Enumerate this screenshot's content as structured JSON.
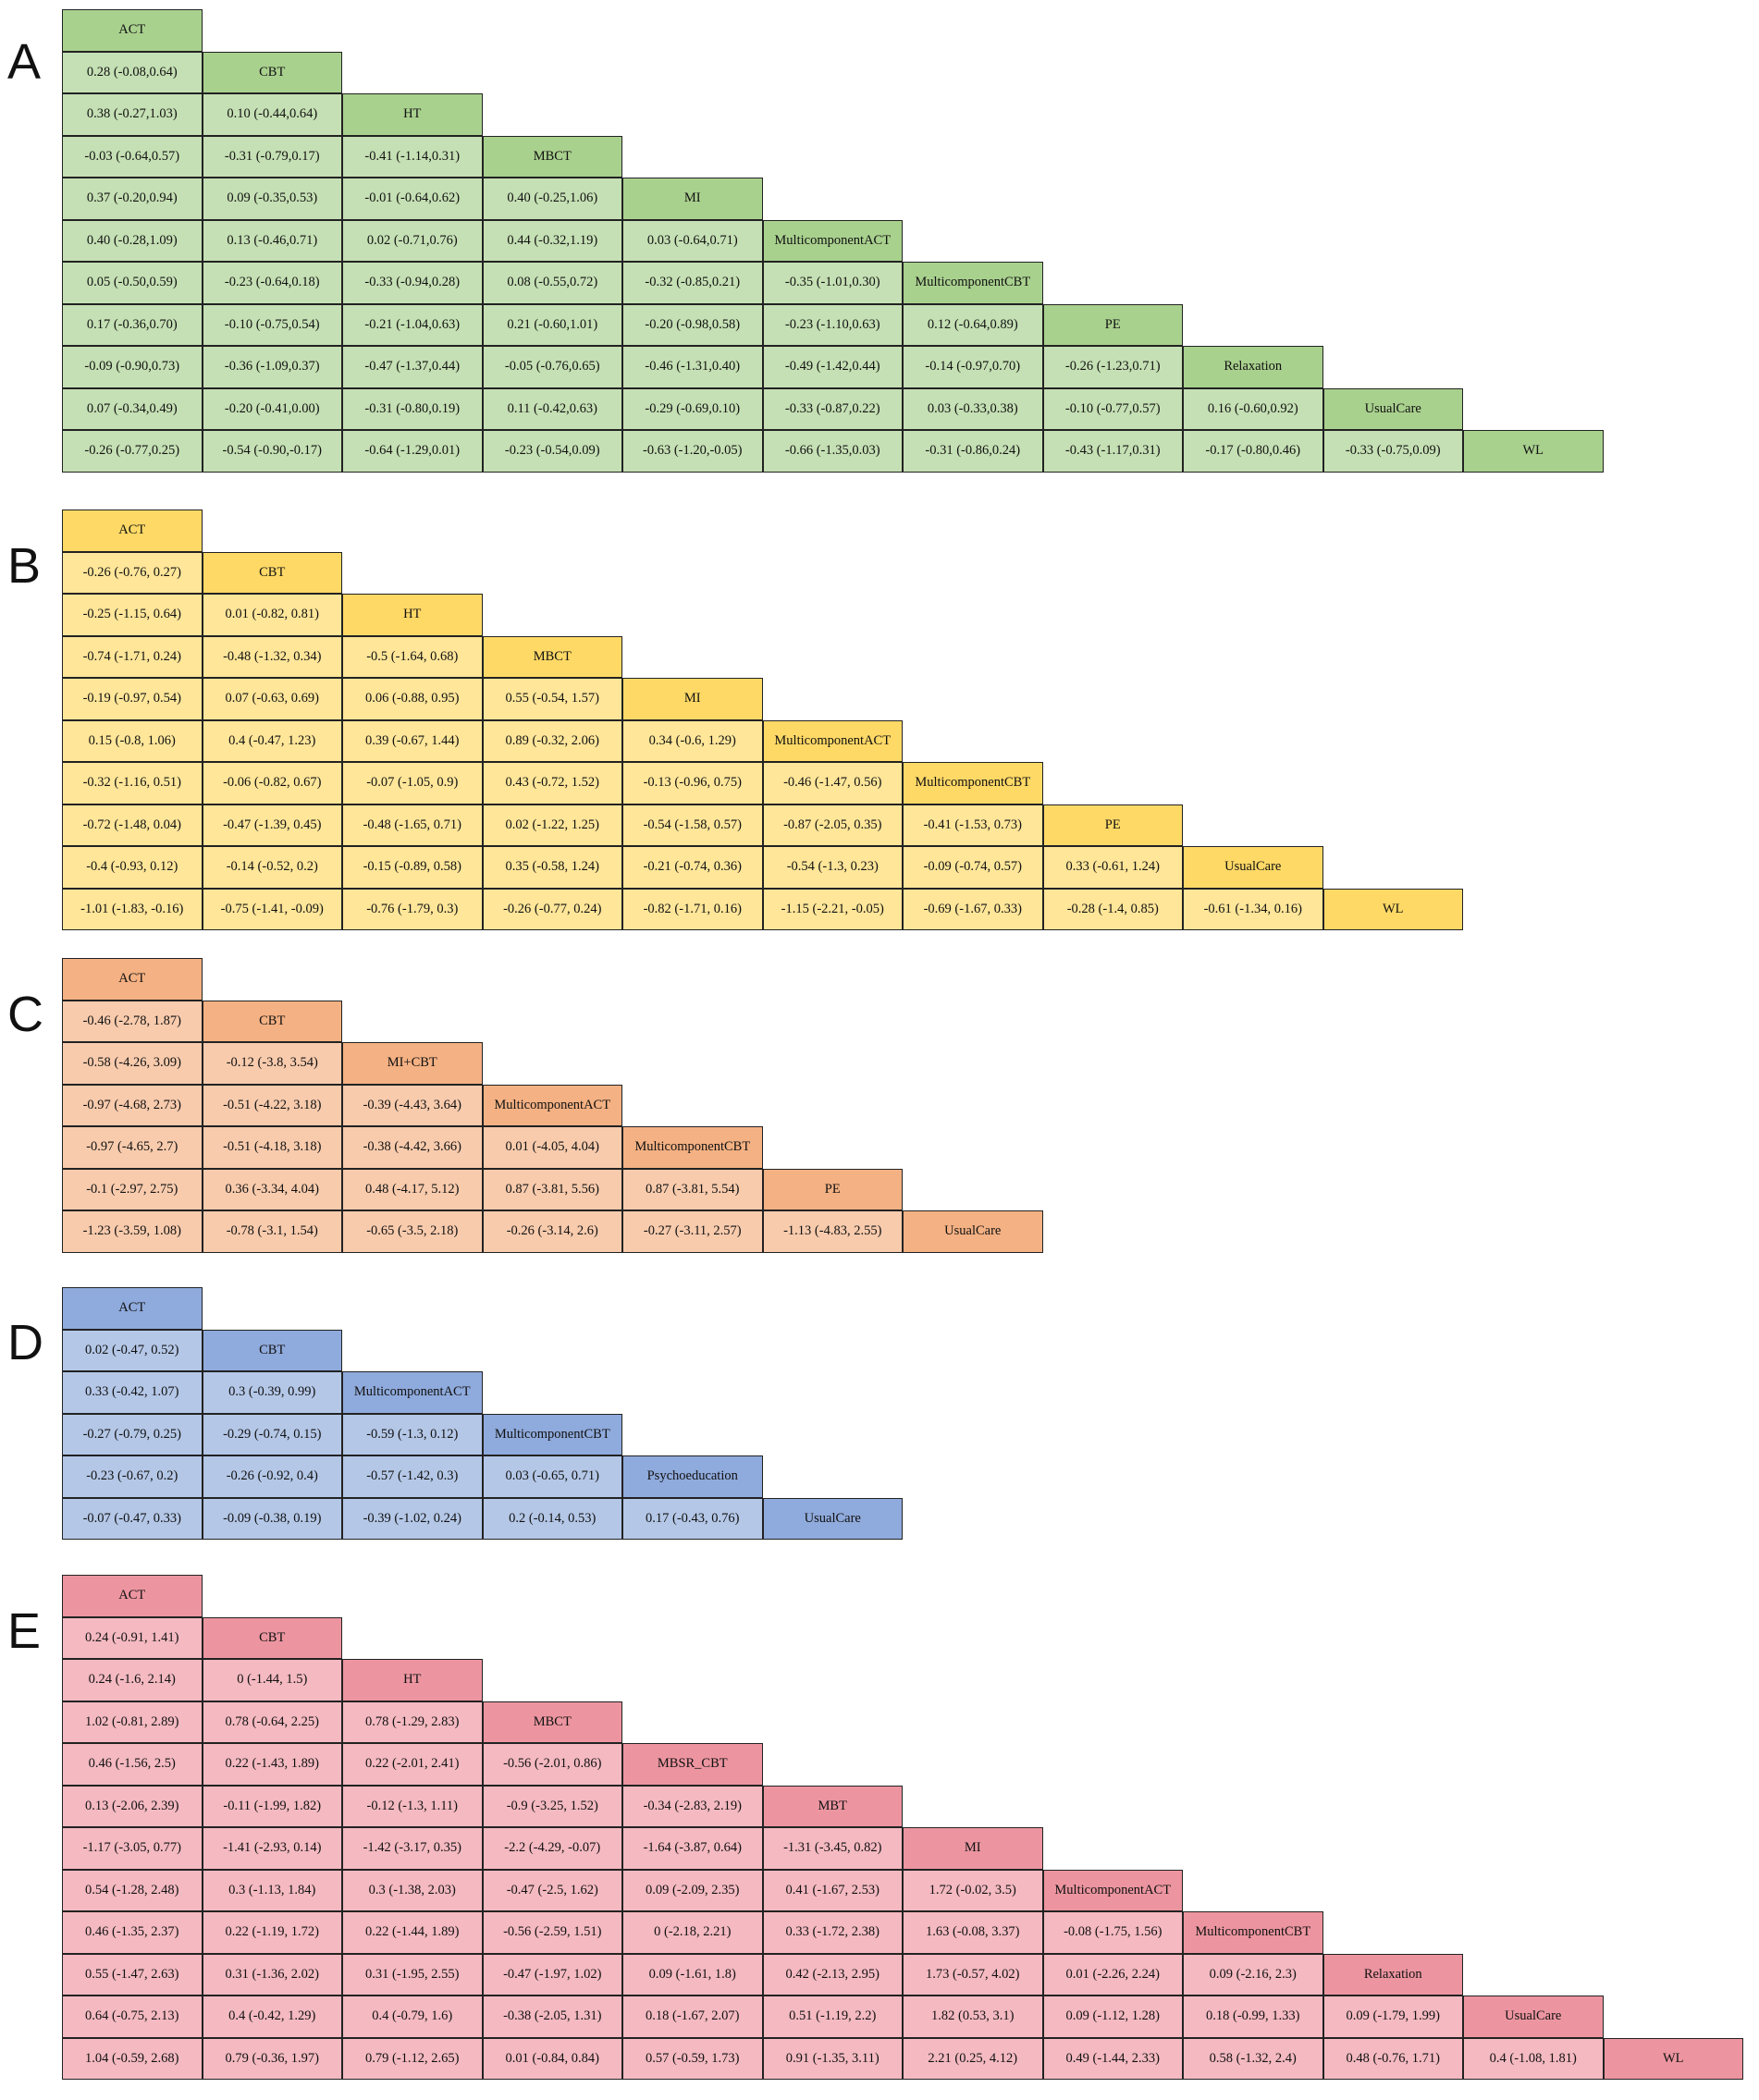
{
  "chart_data": [
    {
      "type": "table",
      "panel": "A",
      "colors": {
        "header": "#a9d18e",
        "cell": "#c5e0b4"
      },
      "treatments": [
        "ACT",
        "CBT",
        "HT",
        "MBCT",
        "MI",
        "MulticomponentACT",
        "MulticomponentCBT",
        "PE",
        "Relaxation",
        "UsualCare",
        "WL"
      ],
      "rows": [
        [],
        [
          "0.28 (-0.08,0.64)"
        ],
        [
          "0.38 (-0.27,1.03)",
          "0.10 (-0.44,0.64)"
        ],
        [
          "-0.03 (-0.64,0.57)",
          "-0.31 (-0.79,0.17)",
          "-0.41 (-1.14,0.31)"
        ],
        [
          "0.37 (-0.20,0.94)",
          "0.09 (-0.35,0.53)",
          "-0.01 (-0.64,0.62)",
          "0.40 (-0.25,1.06)"
        ],
        [
          "0.40 (-0.28,1.09)",
          "0.13 (-0.46,0.71)",
          "0.02 (-0.71,0.76)",
          "0.44 (-0.32,1.19)",
          "0.03 (-0.64,0.71)"
        ],
        [
          "0.05 (-0.50,0.59)",
          "-0.23 (-0.64,0.18)",
          "-0.33 (-0.94,0.28)",
          "0.08 (-0.55,0.72)",
          "-0.32 (-0.85,0.21)",
          "-0.35 (-1.01,0.30)"
        ],
        [
          "0.17 (-0.36,0.70)",
          "-0.10 (-0.75,0.54)",
          "-0.21 (-1.04,0.63)",
          "0.21 (-0.60,1.01)",
          "-0.20 (-0.98,0.58)",
          "-0.23 (-1.10,0.63)",
          "0.12 (-0.64,0.89)"
        ],
        [
          "-0.09 (-0.90,0.73)",
          "-0.36 (-1.09,0.37)",
          "-0.47 (-1.37,0.44)",
          "-0.05 (-0.76,0.65)",
          "-0.46 (-1.31,0.40)",
          "-0.49 (-1.42,0.44)",
          "-0.14 (-0.97,0.70)",
          "-0.26 (-1.23,0.71)"
        ],
        [
          "0.07 (-0.34,0.49)",
          "-0.20 (-0.41,0.00)",
          "-0.31 (-0.80,0.19)",
          "0.11 (-0.42,0.63)",
          "-0.29 (-0.69,0.10)",
          "-0.33 (-0.87,0.22)",
          "0.03 (-0.33,0.38)",
          "-0.10 (-0.77,0.57)",
          "0.16 (-0.60,0.92)"
        ],
        [
          "-0.26 (-0.77,0.25)",
          "-0.54 (-0.90,-0.17)",
          "-0.64 (-1.29,0.01)",
          "-0.23 (-0.54,0.09)",
          "-0.63 (-1.20,-0.05)",
          "-0.66 (-1.35,0.03)",
          "-0.31 (-0.86,0.24)",
          "-0.43 (-1.17,0.31)",
          "-0.17 (-0.80,0.46)",
          "-0.33 (-0.75,0.09)"
        ]
      ]
    },
    {
      "type": "table",
      "panel": "B",
      "colors": {
        "header": "#ffd966",
        "cell": "#ffe699"
      },
      "treatments": [
        "ACT",
        "CBT",
        "HT",
        "MBCT",
        "MI",
        "MulticomponentACT",
        "MulticomponentCBT",
        "PE",
        "UsualCare",
        "WL"
      ],
      "rows": [
        [],
        [
          "-0.26 (-0.76, 0.27)"
        ],
        [
          "-0.25 (-1.15, 0.64)",
          "0.01 (-0.82, 0.81)"
        ],
        [
          "-0.74 (-1.71, 0.24)",
          "-0.48 (-1.32, 0.34)",
          "-0.5 (-1.64, 0.68)"
        ],
        [
          "-0.19 (-0.97, 0.54)",
          "0.07 (-0.63, 0.69)",
          "0.06 (-0.88, 0.95)",
          "0.55 (-0.54, 1.57)"
        ],
        [
          "0.15 (-0.8, 1.06)",
          "0.4 (-0.47, 1.23)",
          "0.39 (-0.67, 1.44)",
          "0.89 (-0.32, 2.06)",
          "0.34 (-0.6, 1.29)"
        ],
        [
          "-0.32 (-1.16, 0.51)",
          "-0.06 (-0.82, 0.67)",
          "-0.07 (-1.05, 0.9)",
          "0.43 (-0.72, 1.52)",
          "-0.13 (-0.96, 0.75)",
          "-0.46 (-1.47, 0.56)"
        ],
        [
          "-0.72 (-1.48, 0.04)",
          "-0.47 (-1.39, 0.45)",
          "-0.48 (-1.65, 0.71)",
          "0.02 (-1.22, 1.25)",
          "-0.54 (-1.58, 0.57)",
          "-0.87 (-2.05, 0.35)",
          "-0.41 (-1.53, 0.73)"
        ],
        [
          "-0.4 (-0.93, 0.12)",
          "-0.14 (-0.52, 0.2)",
          "-0.15 (-0.89, 0.58)",
          "0.35 (-0.58, 1.24)",
          "-0.21 (-0.74, 0.36)",
          "-0.54 (-1.3, 0.23)",
          "-0.09 (-0.74, 0.57)",
          "0.33 (-0.61, 1.24)"
        ],
        [
          "-1.01 (-1.83, -0.16)",
          "-0.75 (-1.41, -0.09)",
          "-0.76 (-1.79, 0.3)",
          "-0.26 (-0.77, 0.24)",
          "-0.82 (-1.71, 0.16)",
          "-1.15 (-2.21, -0.05)",
          "-0.69 (-1.67, 0.33)",
          "-0.28 (-1.4, 0.85)",
          "-0.61 (-1.34, 0.16)"
        ]
      ]
    },
    {
      "type": "table",
      "panel": "C",
      "colors": {
        "header": "#f4b183",
        "cell": "#f8cbad"
      },
      "treatments": [
        "ACT",
        "CBT",
        "MI+CBT",
        "MulticomponentACT",
        "MulticomponentCBT",
        "PE",
        "UsualCare"
      ],
      "rows": [
        [],
        [
          "-0.46 (-2.78, 1.87)"
        ],
        [
          "-0.58 (-4.26, 3.09)",
          "-0.12 (-3.8, 3.54)"
        ],
        [
          "-0.97 (-4.68, 2.73)",
          "-0.51 (-4.22, 3.18)",
          "-0.39 (-4.43, 3.64)"
        ],
        [
          "-0.97 (-4.65, 2.7)",
          "-0.51 (-4.18, 3.18)",
          "-0.38 (-4.42, 3.66)",
          "0.01 (-4.05, 4.04)"
        ],
        [
          "-0.1 (-2.97, 2.75)",
          "0.36 (-3.34, 4.04)",
          "0.48 (-4.17, 5.12)",
          "0.87 (-3.81, 5.56)",
          "0.87 (-3.81, 5.54)"
        ],
        [
          "-1.23 (-3.59, 1.08)",
          "-0.78 (-3.1, 1.54)",
          "-0.65 (-3.5, 2.18)",
          "-0.26 (-3.14, 2.6)",
          "-0.27 (-3.11, 2.57)",
          "-1.13 (-4.83, 2.55)"
        ]
      ]
    },
    {
      "type": "table",
      "panel": "D",
      "colors": {
        "header": "#8faadc",
        "cell": "#b4c7e7"
      },
      "treatments": [
        "ACT",
        "CBT",
        "MulticomponentACT",
        "MulticomponentCBT",
        "Psychoeducation",
        "UsualCare"
      ],
      "rows": [
        [],
        [
          "0.02 (-0.47, 0.52)"
        ],
        [
          "0.33 (-0.42, 1.07)",
          "0.3 (-0.39, 0.99)"
        ],
        [
          "-0.27 (-0.79, 0.25)",
          "-0.29 (-0.74, 0.15)",
          "-0.59 (-1.3, 0.12)"
        ],
        [
          "-0.23 (-0.67, 0.2)",
          "-0.26 (-0.92, 0.4)",
          "-0.57 (-1.42, 0.3)",
          "0.03 (-0.65, 0.71)"
        ],
        [
          "-0.07 (-0.47, 0.33)",
          "-0.09 (-0.38, 0.19)",
          "-0.39 (-1.02, 0.24)",
          "0.2 (-0.14, 0.53)",
          "0.17 (-0.43, 0.76)"
        ]
      ]
    },
    {
      "type": "table",
      "panel": "E",
      "colors": {
        "header": "#ec95a0",
        "cell": "#f4b9c1"
      },
      "treatments": [
        "ACT",
        "CBT",
        "HT",
        "MBCT",
        "MBSR_CBT",
        "MBT",
        "MI",
        "MulticomponentACT",
        "MulticomponentCBT",
        "Relaxation",
        "UsualCare",
        "WL"
      ],
      "rows": [
        [],
        [
          "0.24 (-0.91, 1.41)"
        ],
        [
          "0.24 (-1.6, 2.14)",
          "0 (-1.44, 1.5)"
        ],
        [
          "1.02 (-0.81, 2.89)",
          "0.78 (-0.64, 2.25)",
          "0.78 (-1.29, 2.83)"
        ],
        [
          "0.46 (-1.56, 2.5)",
          "0.22 (-1.43, 1.89)",
          "0.22 (-2.01, 2.41)",
          "-0.56 (-2.01, 0.86)"
        ],
        [
          "0.13 (-2.06, 2.39)",
          "-0.11 (-1.99, 1.82)",
          "-0.12 (-1.3, 1.11)",
          "-0.9 (-3.25, 1.52)",
          "-0.34 (-2.83, 2.19)"
        ],
        [
          "-1.17 (-3.05, 0.77)",
          "-1.41 (-2.93, 0.14)",
          "-1.42 (-3.17, 0.35)",
          "-2.2 (-4.29, -0.07)",
          "-1.64 (-3.87, 0.64)",
          "-1.31 (-3.45, 0.82)"
        ],
        [
          "0.54 (-1.28, 2.48)",
          "0.3 (-1.13, 1.84)",
          "0.3 (-1.38, 2.03)",
          "-0.47 (-2.5, 1.62)",
          "0.09 (-2.09, 2.35)",
          "0.41 (-1.67, 2.53)",
          "1.72 (-0.02, 3.5)"
        ],
        [
          "0.46 (-1.35, 2.37)",
          "0.22 (-1.19, 1.72)",
          "0.22 (-1.44, 1.89)",
          "-0.56 (-2.59, 1.51)",
          "0 (-2.18, 2.21)",
          "0.33 (-1.72, 2.38)",
          "1.63 (-0.08, 3.37)",
          "-0.08 (-1.75, 1.56)"
        ],
        [
          "0.55 (-1.47, 2.63)",
          "0.31 (-1.36, 2.02)",
          "0.31 (-1.95, 2.55)",
          "-0.47 (-1.97, 1.02)",
          "0.09 (-1.61, 1.8)",
          "0.42 (-2.13, 2.95)",
          "1.73 (-0.57, 4.02)",
          "0.01 (-2.26, 2.24)",
          "0.09 (-2.16, 2.3)"
        ],
        [
          "0.64 (-0.75, 2.13)",
          "0.4 (-0.42, 1.29)",
          "0.4 (-0.79, 1.6)",
          "-0.38 (-2.05, 1.31)",
          "0.18 (-1.67, 2.07)",
          "0.51 (-1.19, 2.2)",
          "1.82 (0.53, 3.1)",
          "0.09 (-1.12, 1.28)",
          "0.18 (-0.99, 1.33)",
          "0.09 (-1.79, 1.99)"
        ],
        [
          "1.04 (-0.59, 2.68)",
          "0.79 (-0.36, 1.97)",
          "0.79 (-1.12, 2.65)",
          "0.01 (-0.84, 0.84)",
          "0.57 (-0.59, 1.73)",
          "0.91 (-1.35, 3.11)",
          "2.21 (0.25, 4.12)",
          "0.49 (-1.44, 2.33)",
          "0.58 (-1.32, 2.4)",
          "0.48 (-0.76, 1.71)",
          "0.4 (-1.08, 1.81)"
        ]
      ]
    }
  ]
}
